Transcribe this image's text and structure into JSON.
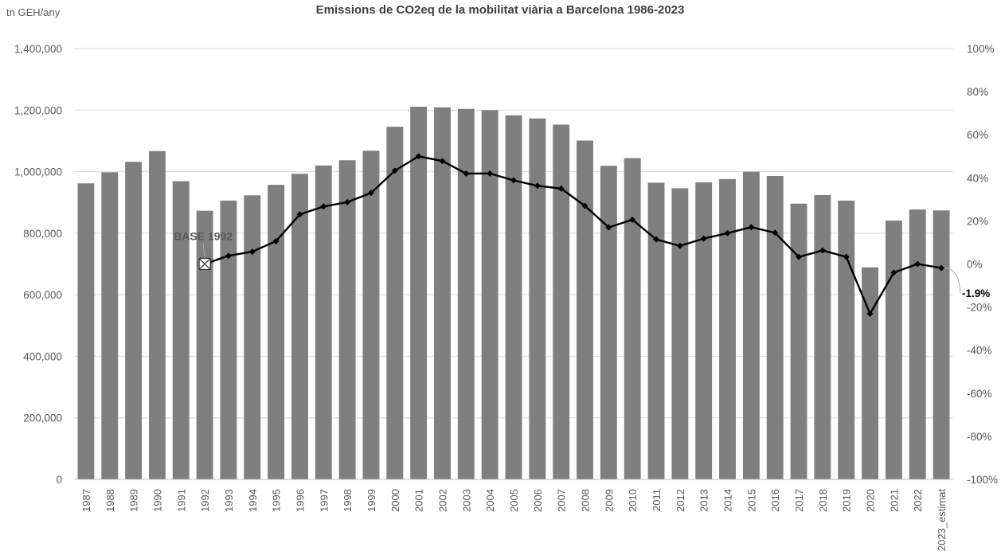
{
  "chart_data": {
    "type": "bar",
    "title": "Emissions de CO2eq de la mobilitat viària a Barcelona 1986-2023",
    "y_unit_label": "tn GEH/any",
    "categories": [
      "1987",
      "1988",
      "1989",
      "1990",
      "1991",
      "1992",
      "1993",
      "1994",
      "1995",
      "1996",
      "1997",
      "1998",
      "1999",
      "2000",
      "2001",
      "2002",
      "2003",
      "2004",
      "2005",
      "2006",
      "2007",
      "2008",
      "2009",
      "2010",
      "2011",
      "2012",
      "2013",
      "2014",
      "2015",
      "2016",
      "2017",
      "2018",
      "2019",
      "2020",
      "2021",
      "2022",
      "2023_estimat"
    ],
    "ylim": [
      0,
      1400000
    ],
    "y_ticks": [
      "0",
      "200,000",
      "400,000",
      "600,000",
      "800,000",
      "1,000,000",
      "1,200,000",
      "1,400,000"
    ],
    "y2lim": [
      -100,
      100
    ],
    "y2_ticks": [
      "-100%",
      "-80%",
      "-60%",
      "-40%",
      "-20%",
      "0%",
      "20%",
      "40%",
      "60%",
      "80%",
      "100%"
    ],
    "grid": true,
    "series": [
      {
        "type": "bar",
        "color": "#7f7f7f",
        "axis": "left",
        "values": [
          962000,
          998000,
          1032000,
          1067000,
          969000,
          873000,
          906000,
          923000,
          957000,
          993000,
          1020000,
          1037000,
          1068000,
          1146000,
          1211000,
          1209000,
          1204000,
          1200000,
          1183000,
          1173000,
          1153000,
          1101000,
          1019000,
          1044000,
          964000,
          946000,
          965000,
          976000,
          1000000,
          986000,
          896000,
          924000,
          906000,
          689000,
          841000,
          877000,
          874000
        ]
      },
      {
        "type": "line",
        "color": "#000000",
        "axis": "right",
        "unit": "%",
        "values": [
          null,
          null,
          null,
          null,
          null,
          0,
          3.8,
          5.7,
          10.6,
          23,
          26.7,
          28.7,
          33,
          43.3,
          50,
          47.8,
          42,
          42,
          38.8,
          36.3,
          35,
          27,
          17,
          20.5,
          11.4,
          8.4,
          11.8,
          14.3,
          17.1,
          14.5,
          3.3,
          6.3,
          3.3,
          -23.1,
          -4,
          0,
          -1.9
        ]
      }
    ],
    "annotations": {
      "base_label": "BASE 1992",
      "end_label": "-1.9%"
    }
  }
}
